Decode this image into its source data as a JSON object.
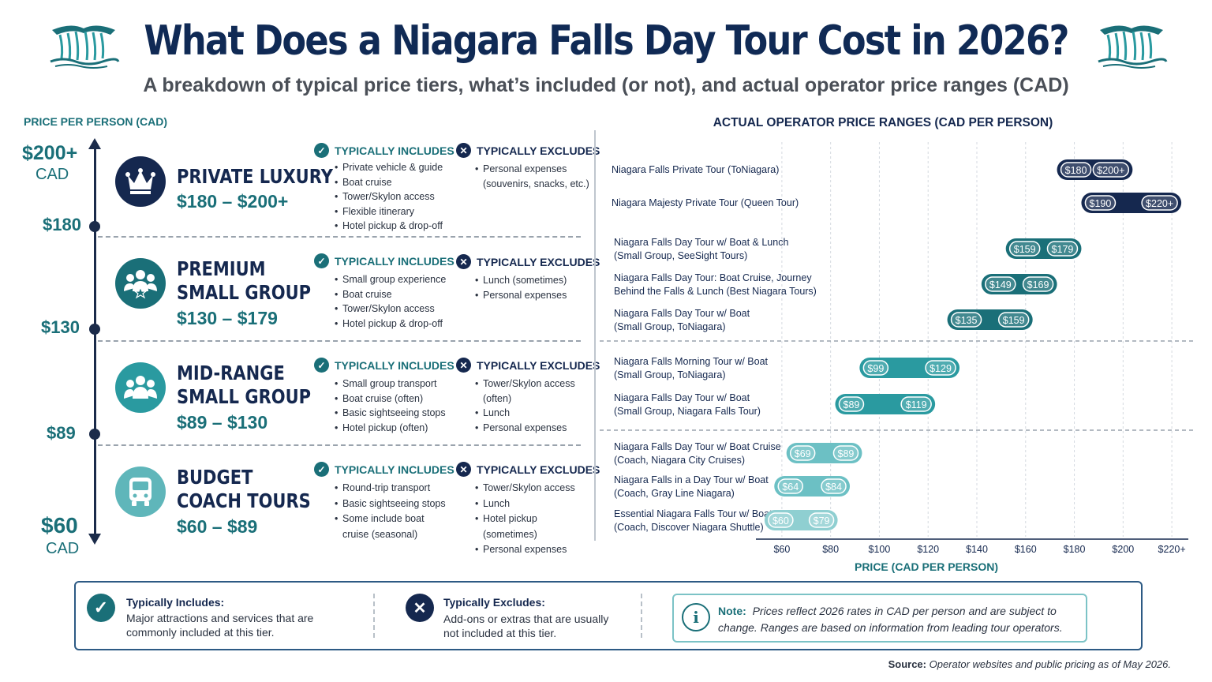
{
  "header": {
    "title": "What Does a Niagara Falls Day Tour Cost in 2026?",
    "subtitle": "A breakdown of typical price tiers, what’s included (or not), and actual operator price ranges (CAD)"
  },
  "left_axis": {
    "title": "PRICE PER PERSON (CAD)",
    "top_label": "$200+",
    "top_unit": "CAD",
    "bottom_label": "$60",
    "bottom_unit": "CAD",
    "ticks": [
      "$180",
      "$130",
      "$89"
    ]
  },
  "tiers": [
    {
      "name_line1": "PRIVATE LUXURY",
      "name_line2": "",
      "range": "$180 – $200+",
      "includes_heading": "TYPICALLY INCLUDES",
      "includes": [
        "Private vehicle & guide",
        "Boat cruise",
        "Tower/Skylon access",
        "Flexible itinerary",
        "Hotel pickup & drop-off"
      ],
      "excludes_heading": "TYPICALLY EXCLUDES",
      "excludes": [
        "Personal expenses (souvenirs, snacks, etc.)"
      ],
      "icon": "crown-icon",
      "color": "#15284f"
    },
    {
      "name_line1": "PREMIUM",
      "name_line2": "SMALL GROUP",
      "range": "$130 – $179",
      "includes_heading": "TYPICALLY INCLUDES",
      "includes": [
        "Small group experience",
        "Boat cruise",
        "Tower/Skylon access",
        "Hotel pickup & drop-off"
      ],
      "excludes_heading": "TYPICALLY EXCLUDES",
      "excludes": [
        "Lunch (sometimes)",
        "Personal expenses"
      ],
      "icon": "group-star-icon",
      "color": "#1a6f78"
    },
    {
      "name_line1": "MID-RANGE",
      "name_line2": "SMALL GROUP",
      "range": "$89 – $130",
      "includes_heading": "TYPICALLY INCLUDES",
      "includes": [
        "Small group transport",
        "Boat cruise (often)",
        "Basic sightseeing stops",
        "Hotel pickup (often)"
      ],
      "excludes_heading": "TYPICALLY EXCLUDES",
      "excludes": [
        "Tower/Skylon access (often)",
        "Lunch",
        "Personal expenses"
      ],
      "icon": "group-icon",
      "color": "#2a9aa0"
    },
    {
      "name_line1": "BUDGET",
      "name_line2": "COACH TOURS",
      "range": "$60 – $89",
      "includes_heading": "TYPICALLY INCLUDES",
      "includes": [
        "Round-trip transport",
        "Basic sightseeing stops",
        "Some include boat cruise (seasonal)"
      ],
      "excludes_heading": "TYPICALLY EXCLUDES",
      "excludes": [
        "Tower/Skylon access",
        "Lunch",
        "Hotel pickup (sometimes)",
        "Personal expenses"
      ],
      "icon": "bus-icon",
      "color": "#5fb6ba"
    }
  ],
  "chart_data": {
    "type": "bar",
    "orientation": "horizontal-range",
    "title": "ACTUAL OPERATOR PRICE RANGES (CAD PER PERSON)",
    "xlabel": "PRICE (CAD PER PERSON)",
    "xlim": [
      50,
      230
    ],
    "x_ticks": [
      60,
      80,
      100,
      120,
      140,
      160,
      180,
      200,
      220
    ],
    "x_tick_labels": [
      "$60",
      "$80",
      "$100",
      "$120",
      "$140",
      "$160",
      "$180",
      "$200",
      "$220+"
    ],
    "grid": true,
    "bars": [
      {
        "label_line1": "Niagara Falls Private Tour (ToNiagara)",
        "label_line2": "",
        "low": 180,
        "high": 200,
        "low_label": "$180",
        "high_label": "$200+",
        "color": "#15284f"
      },
      {
        "label_line1": "Niagara Majesty Private Tour (Queen Tour)",
        "label_line2": "",
        "low": 190,
        "high": 220,
        "low_label": "$190",
        "high_label": "$220+",
        "color": "#15284f"
      },
      {
        "label_line1": "Niagara Falls Day Tour w/ Boat & Lunch",
        "label_line2": "(Small Group, SeeSight Tours)",
        "low": 159,
        "high": 179,
        "low_label": "$159",
        "high_label": "$179",
        "color": "#1a6f78"
      },
      {
        "label_line1": "Niagara Falls Day Tour: Boat Cruise, Journey",
        "label_line2": "Behind the Falls & Lunch (Best Niagara Tours)",
        "low": 149,
        "high": 169,
        "low_label": "$149",
        "high_label": "$169",
        "color": "#1a6f78"
      },
      {
        "label_line1": "Niagara Falls Day Tour w/ Boat",
        "label_line2": "(Small Group, ToNiagara)",
        "low": 135,
        "high": 159,
        "low_label": "$135",
        "high_label": "$159",
        "color": "#1a6f78"
      },
      {
        "label_line1": "Niagara Falls Morning Tour w/ Boat",
        "label_line2": "(Small Group, ToNiagara)",
        "low": 99,
        "high": 129,
        "low_label": "$99",
        "high_label": "$129",
        "color": "#2a9aa0"
      },
      {
        "label_line1": "Niagara Falls Day Tour w/ Boat",
        "label_line2": "(Small Group, Niagara Falls Tour)",
        "low": 89,
        "high": 119,
        "low_label": "$89",
        "high_label": "$119",
        "color": "#2a9aa0"
      },
      {
        "label_line1": "Niagara Falls Day Tour w/ Boat Cruise",
        "label_line2": "(Coach, Niagara City Cruises)",
        "low": 69,
        "high": 89,
        "low_label": "$69",
        "high_label": "$89",
        "color": "#6cc0c4"
      },
      {
        "label_line1": "Niagara Falls in a Day Tour w/ Boat",
        "label_line2": "(Coach, Gray Line Niagara)",
        "low": 64,
        "high": 84,
        "low_label": "$64",
        "high_label": "$84",
        "color": "#6cc0c4"
      },
      {
        "label_line1": "Essential Niagara Falls Tour w/ Boat",
        "label_line2": "(Coach, Discover Niagara Shuttle)",
        "low": 60,
        "high": 79,
        "low_label": "$60",
        "high_label": "$79",
        "color": "#8fcfd1"
      }
    ]
  },
  "legend": {
    "includes_title": "Typically Includes:",
    "includes_text": "Major attractions and services that are commonly included at this tier.",
    "excludes_title": "Typically Excludes:",
    "excludes_text": "Add-ons or extras that are usually not included at this tier.",
    "note_label": "Note:",
    "note_text": "Prices reflect 2026 rates in CAD per person and are subject to change. Ranges are based on information from leading tour operators."
  },
  "source": {
    "label": "Source:",
    "text": "Operator websites and public pricing as of May 2026."
  }
}
